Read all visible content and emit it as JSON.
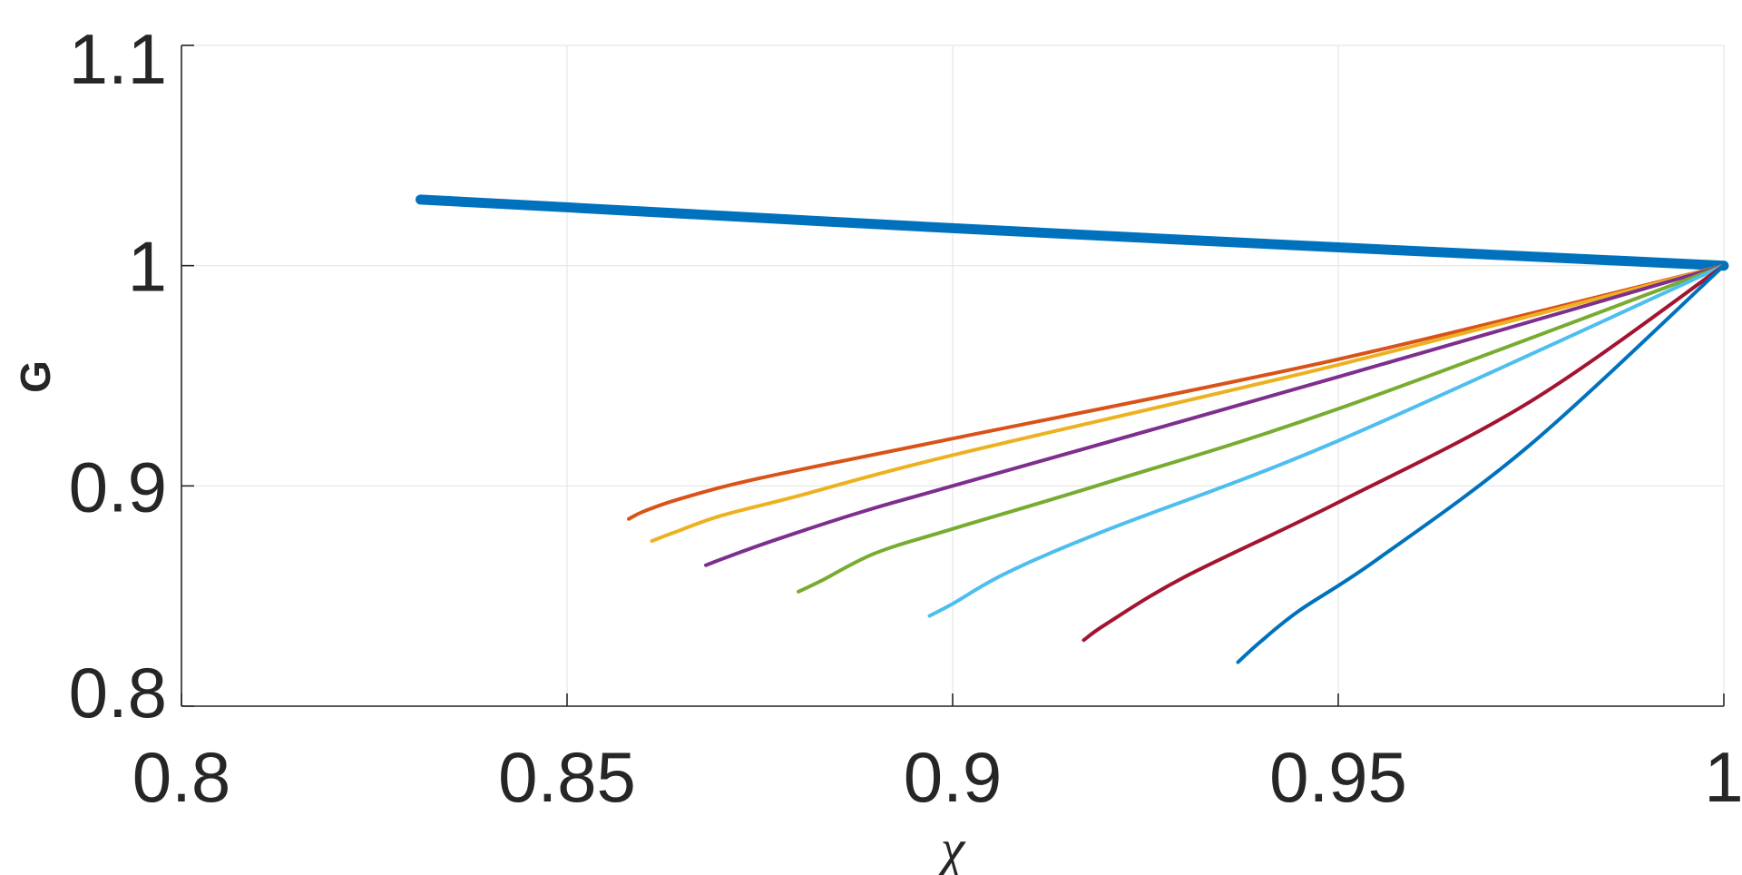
{
  "chart_data": {
    "type": "line",
    "title": "",
    "xlabel": "χ",
    "ylabel": "G",
    "xlim": [
      0.8,
      1.0
    ],
    "ylim": [
      0.8,
      1.1
    ],
    "grid": true,
    "legend": "none",
    "xticks": [
      0.8,
      0.85,
      0.9,
      0.95,
      1.0
    ],
    "xtick_labels": [
      "0.8",
      "0.85",
      "0.9",
      "0.95",
      "1"
    ],
    "yticks": [
      0.8,
      0.9,
      1.0,
      1.1
    ],
    "ytick_labels": [
      "0.8",
      "0.9",
      "1",
      "1.1"
    ],
    "series": [
      {
        "color": "#0072BD",
        "width": 11,
        "x": [
          0.831,
          0.85,
          0.9,
          0.95,
          1.0
        ],
        "y": [
          1.03,
          1.0265,
          1.017,
          1.0083,
          1.0
        ]
      },
      {
        "color": "#D95319",
        "width": 4,
        "x": [
          0.858,
          0.86,
          0.865,
          0.875,
          0.9,
          0.95,
          1.0
        ],
        "y": [
          0.885,
          0.8885,
          0.8945,
          0.9035,
          0.9215,
          0.9575,
          1.0
        ]
      },
      {
        "color": "#EDB120",
        "width": 4,
        "x": [
          0.861,
          0.864,
          0.87,
          0.88,
          0.9,
          0.95,
          1.0
        ],
        "y": [
          0.875,
          0.879,
          0.8865,
          0.8955,
          0.914,
          0.955,
          1.0
        ]
      },
      {
        "color": "#7E2F8E",
        "width": 4,
        "x": [
          0.868,
          0.871,
          0.877,
          0.888,
          0.9,
          0.95,
          1.0
        ],
        "y": [
          0.864,
          0.868,
          0.8755,
          0.888,
          0.9,
          0.9495,
          1.0
        ]
      },
      {
        "color": "#77AC30",
        "width": 4,
        "x": [
          0.88,
          0.883,
          0.89,
          0.9,
          0.92,
          0.95,
          1.0
        ],
        "y": [
          0.852,
          0.857,
          0.8695,
          0.8805,
          0.9015,
          0.935,
          1.0
        ]
      },
      {
        "color": "#4DBEEE",
        "width": 4,
        "x": [
          0.897,
          0.9,
          0.907,
          0.92,
          0.95,
          1.0
        ],
        "y": [
          0.841,
          0.8465,
          0.8605,
          0.88,
          0.9205,
          1.0
        ]
      },
      {
        "color": "#A2142F",
        "width": 4,
        "x": [
          0.917,
          0.92,
          0.93,
          0.95,
          0.975,
          1.0
        ],
        "y": [
          0.83,
          0.8375,
          0.8585,
          0.8925,
          0.9385,
          1.0
        ]
      },
      {
        "color": "#0072BD",
        "width": 4,
        "x": [
          0.937,
          0.94,
          0.945,
          0.955,
          0.975,
          1.0
        ],
        "y": [
          0.82,
          0.8295,
          0.8435,
          0.8665,
          0.919,
          1.0
        ]
      }
    ]
  }
}
